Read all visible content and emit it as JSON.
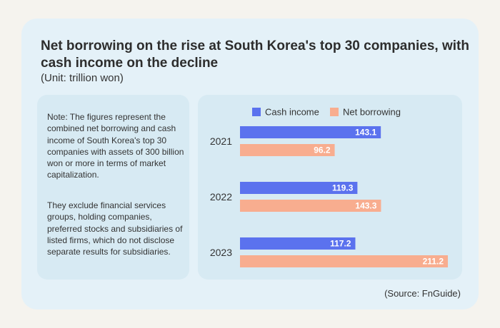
{
  "title": "Net borrowing on the rise at South Korea's top 30 companies, with cash income on the decline",
  "unit": "(Unit: trillion won)",
  "note": {
    "paragraph1": "Note: The figures represent the combined net borrowing and cash income of South Korea's top 30 companies with assets of 300 billion won or more in terms of market capitalization.",
    "paragraph2": "They exclude financial services groups, holding companies, preferred stocks and subsidiaries of listed firms, which do not disclose separate results for subsidiaries."
  },
  "source": "(Source: FnGuide)",
  "colors": {
    "cash_income": "#5b72ee",
    "net_borrowing": "#f8ad8f"
  },
  "chart_data": {
    "type": "bar",
    "orientation": "horizontal",
    "categories": [
      "2021",
      "2022",
      "2023"
    ],
    "series": [
      {
        "name": "Cash income",
        "values": [
          143.1,
          119.3,
          117.2
        ]
      },
      {
        "name": "Net borrowing",
        "values": [
          96.2,
          143.3,
          211.2
        ]
      }
    ],
    "legend_position": "top",
    "grid": false,
    "xlim": [
      0,
      211.2
    ]
  }
}
